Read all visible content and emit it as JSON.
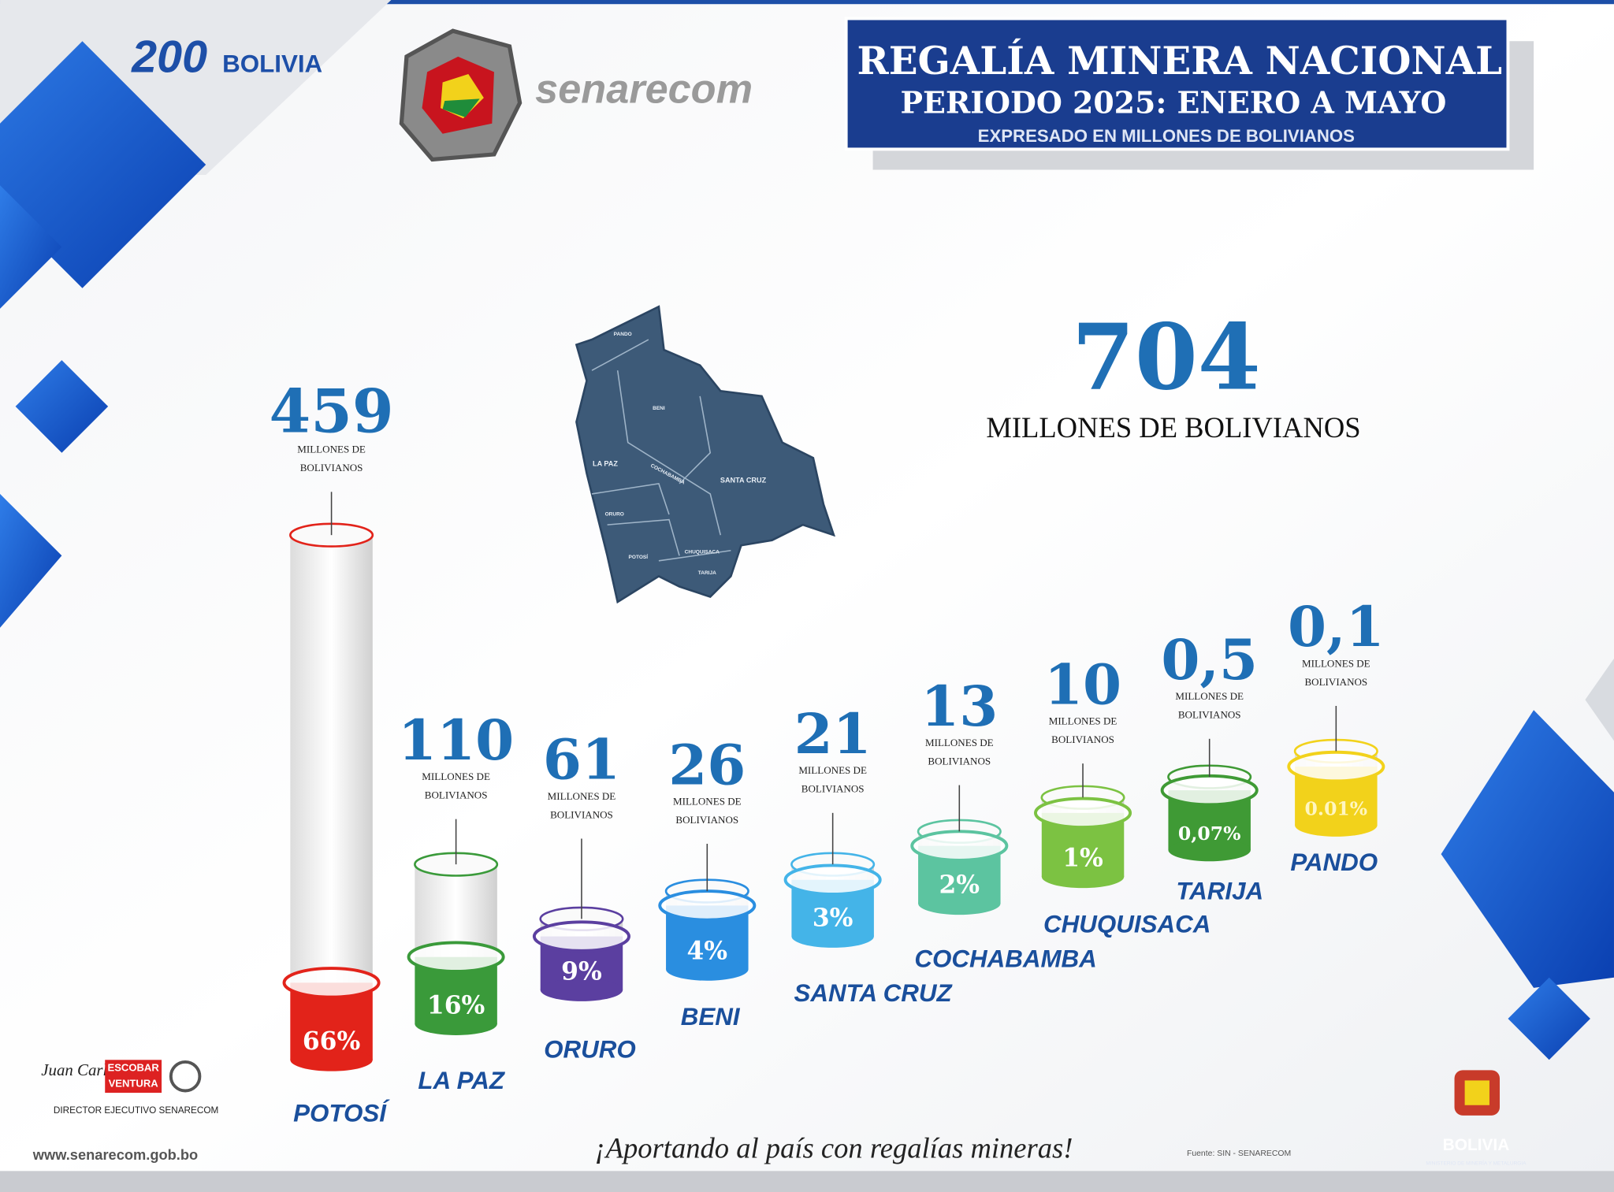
{
  "header": {
    "title": "REGALÍA MINERA NACIONAL",
    "period": "PERIODO 2025: ENERO A MAYO",
    "unit_note": "EXPRESADO EN MILLONES DE BOLIVIANOS"
  },
  "logos": {
    "bicentenary_mark": "200",
    "bicentenary_country": "BOLIVIA",
    "senarecom": "senarecom"
  },
  "total": {
    "value": "704",
    "unit": "MILLONES DE BOLIVIANOS"
  },
  "map": {
    "labels": [
      "PANDO",
      "BENI",
      "LA PAZ",
      "SANTA CRUZ",
      "ORURO",
      "COCHABAMBA",
      "POTOSÍ",
      "CHUQUISACA",
      "TARIJA"
    ]
  },
  "departments": [
    {
      "name": "POTOSÍ",
      "value": "459",
      "unit": [
        "MILLONES DE",
        "BOLIVIANOS"
      ],
      "share": "66%"
    },
    {
      "name": "LA PAZ",
      "value": "110",
      "unit": [
        "MILLONES DE",
        "BOLIVIANOS"
      ],
      "share": "16%"
    },
    {
      "name": "ORURO",
      "value": "61",
      "unit": [
        "MILLONES DE",
        "BOLIVIANOS"
      ],
      "share": "9%"
    },
    {
      "name": "BENI",
      "value": "26",
      "unit": [
        "MILLONES DE",
        "BOLIVIANOS"
      ],
      "share": "4%"
    },
    {
      "name": "SANTA CRUZ",
      "value": "21",
      "unit": [
        "MILLONES DE",
        "BOLIVIANOS"
      ],
      "share": "3%"
    },
    {
      "name": "COCHABAMBA",
      "value": "13",
      "unit": [
        "MILLONES DE",
        "BOLIVIANOS"
      ],
      "share": "2%"
    },
    {
      "name": "CHUQUISACA",
      "value": "10",
      "unit": [
        "MILLONES DE",
        "BOLIVIANOS"
      ],
      "share": "1%"
    },
    {
      "name": "TARIJA",
      "value": "0,5",
      "unit": [
        "MILLONES DE",
        "BOLIVIANOS"
      ],
      "share": "0,07%"
    },
    {
      "name": "PANDO",
      "value": "0,1",
      "unit": [
        "MILLONES DE",
        "BOLIVIANOS"
      ],
      "share": "0.01%"
    }
  ],
  "signature": {
    "name": "Juan Carlos",
    "surname": "ESCOBAR VENTURA",
    "role": "DIRECTOR EJECUTIVO SENARECOM"
  },
  "footer": {
    "website": "www.senarecom.gob.bo",
    "slogan": "¡Aportando al país con regalías mineras!",
    "source": "Fuente: SIN - SENARECOM",
    "country": "BOLIVIA",
    "ministry": "MINISTERIO DE MINERÍA Y METALURGIA"
  }
}
